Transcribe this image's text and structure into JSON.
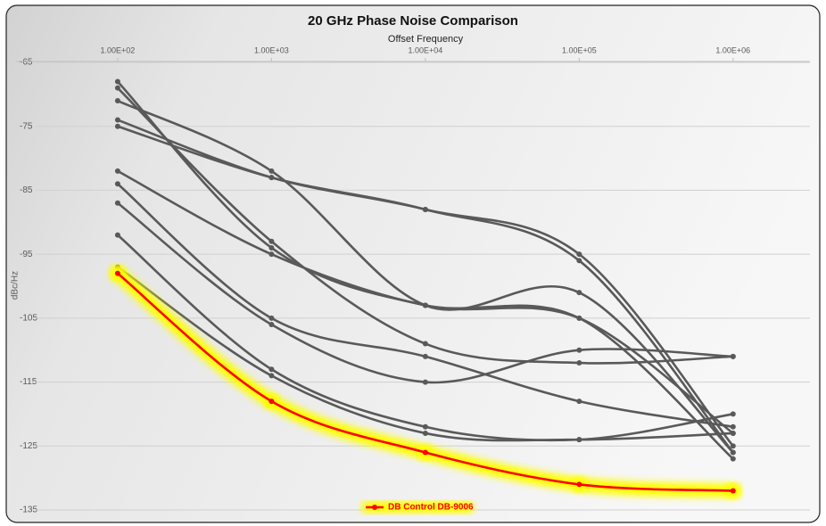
{
  "chart_data": {
    "type": "line",
    "title": "20 GHz Phase Noise Comparison",
    "x_label": "Offset Frequency",
    "y_label": "dBc/Hz",
    "x": [
      100,
      1000,
      10000,
      100000,
      1000000
    ],
    "xlim": [
      22,
      3160000
    ],
    "log_x": true,
    "xticks": [
      {
        "value": 100,
        "label": "1.00E+02"
      },
      {
        "value": 1000,
        "label": "1.00E+03"
      },
      {
        "value": 10000,
        "label": "1.00E+04"
      },
      {
        "value": 100000,
        "label": "1.00E+05"
      },
      {
        "value": 1000000,
        "label": "1.00E+06"
      }
    ],
    "ylim": [
      -135,
      -65
    ],
    "yticks": [
      -65,
      -75,
      -85,
      -95,
      -105,
      -115,
      -125,
      -135
    ],
    "grid": true,
    "series": [
      {
        "color": "#595959",
        "values": [
          -68,
          -94,
          -103,
          -105,
          -123
        ]
      },
      {
        "color": "#595959",
        "values": [
          -69,
          -93,
          -109,
          -112,
          -111
        ]
      },
      {
        "color": "#595959",
        "values": [
          -71,
          -82,
          -103,
          -101,
          -126
        ]
      },
      {
        "color": "#595959",
        "values": [
          -74,
          -83,
          -88,
          -95,
          -125
        ]
      },
      {
        "color": "#595959",
        "values": [
          -75,
          -83,
          -88,
          -96,
          -126
        ]
      },
      {
        "color": "#595959",
        "values": [
          -82,
          -95,
          -103,
          -105,
          -127
        ]
      },
      {
        "color": "#595959",
        "values": [
          -84,
          -105,
          -111,
          -118,
          -122
        ]
      },
      {
        "color": "#595959",
        "values": [
          -87,
          -106,
          -115,
          -110,
          -111
        ]
      },
      {
        "color": "#595959",
        "values": [
          -92,
          -113,
          -122,
          -124,
          -120
        ]
      },
      {
        "color": "#595959",
        "values": [
          -97,
          -114,
          -123,
          -124,
          -123
        ]
      },
      {
        "name": "DB Control DB-9006",
        "color": "#ff0000",
        "glow": "#ffff00",
        "values": [
          -98,
          -118,
          -126,
          -131,
          -132
        ]
      }
    ],
    "legend": "bottom"
  }
}
